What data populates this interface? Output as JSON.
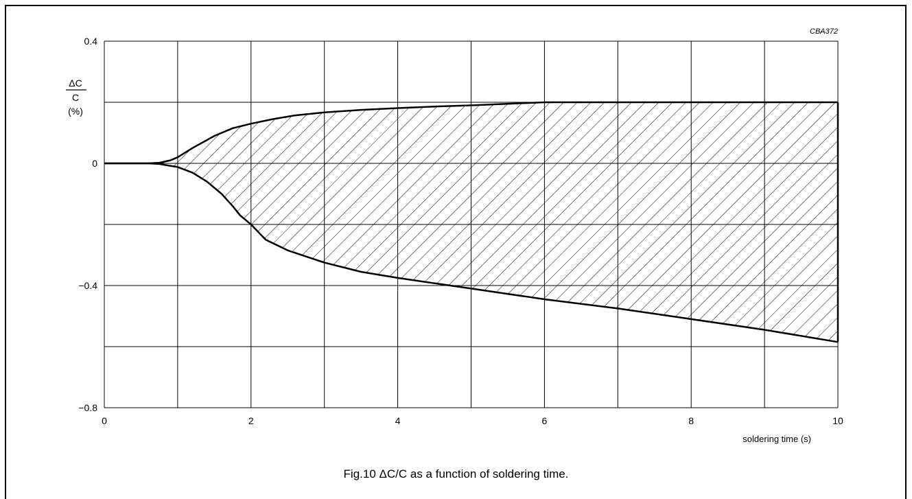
{
  "figure": {
    "code": "CBA372",
    "caption": "Fig.10  ΔC/C as a function of soldering time."
  },
  "chart_data": {
    "type": "area",
    "ylabel_numerator": "ΔC",
    "ylabel_denominator": "C",
    "ylabel_unit": "(%)",
    "xlabel": "soldering time (s)",
    "xlim": [
      0,
      10
    ],
    "ylim": [
      -0.8,
      0.4
    ],
    "x_ticks": [
      0,
      2,
      4,
      6,
      8,
      10
    ],
    "y_ticks": [
      0.4,
      0,
      -0.4,
      -0.8
    ],
    "y_tick_labels": [
      "0.4",
      "0",
      "−0.4",
      "−0.8"
    ],
    "grid": true,
    "series": [
      {
        "x": [
          0,
          0.6,
          0.75,
          0.9,
          1.0,
          1.2,
          1.5,
          1.75,
          2.0,
          2.3,
          2.6,
          3.0,
          3.5,
          4.0,
          4.5,
          5.0,
          6.0,
          7.0,
          8.0,
          9.0,
          10.0
        ],
        "y": [
          0,
          0,
          0.002,
          0.01,
          0.02,
          0.05,
          0.09,
          0.115,
          0.13,
          0.145,
          0.157,
          0.167,
          0.175,
          0.181,
          0.186,
          0.19,
          0.2,
          0.2,
          0.2,
          0.2,
          0.2
        ]
      },
      {
        "x": [
          0,
          0.6,
          0.75,
          0.9,
          1.0,
          1.2,
          1.4,
          1.6,
          1.75,
          1.85,
          2.0,
          2.2,
          2.5,
          3.0,
          3.5,
          4.0,
          5.0,
          6.0,
          7.0,
          8.0,
          9.0,
          10.0
        ],
        "y": [
          0,
          0,
          -0.002,
          -0.008,
          -0.012,
          -0.03,
          -0.06,
          -0.1,
          -0.14,
          -0.17,
          -0.2,
          -0.25,
          -0.285,
          -0.325,
          -0.355,
          -0.375,
          -0.41,
          -0.445,
          -0.475,
          -0.51,
          -0.545,
          -0.585
        ]
      }
    ],
    "shaded_region": "between series",
    "hatch": "diagonal"
  }
}
